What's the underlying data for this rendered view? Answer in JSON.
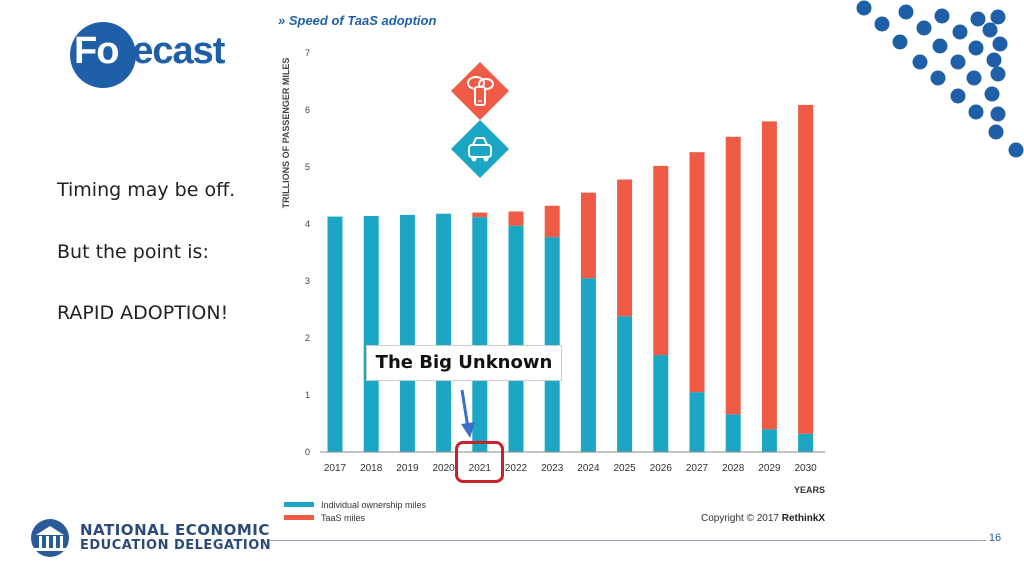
{
  "logo": {
    "part1": "Fo",
    "part2": "recast"
  },
  "side_text": {
    "line1": "Timing may be off.",
    "line2": "But the point is:",
    "line3": "RAPID ADOPTION!"
  },
  "annotation": {
    "label": "The Big Unknown",
    "highlight_year": "2021"
  },
  "organization": {
    "line1": "NATIONAL ECONOMIC",
    "line2": "EDUCATION DELEGATION"
  },
  "page_number": "16",
  "copyright": {
    "text": "Copyright © 2017",
    "brand": "RethinkX"
  },
  "colors": {
    "individual": "#1ba6c4",
    "taas": "#ef5b44",
    "brand_blue": "#1f5fa8",
    "highlight": "#c0252a",
    "dots": "#1f5fa8"
  },
  "chart_data": {
    "type": "bar",
    "stacked": true,
    "title": "» Speed of TaaS adoption",
    "xlabel": "YEARS",
    "ylabel": "TRILLIONS OF PASSENGER MILES",
    "ylim": [
      0,
      7
    ],
    "yticks": [
      0,
      1,
      2,
      3,
      4,
      5,
      6,
      7
    ],
    "grid": false,
    "legend_position": "bottom-left",
    "categories": [
      "2017",
      "2018",
      "2019",
      "2020",
      "2021",
      "2022",
      "2023",
      "2024",
      "2025",
      "2026",
      "2027",
      "2028",
      "2029",
      "2030"
    ],
    "series": [
      {
        "name": "Individual ownership miles",
        "color": "#1ba6c4",
        "values": [
          4.13,
          4.14,
          4.16,
          4.18,
          4.12,
          3.97,
          3.77,
          3.05,
          2.38,
          1.7,
          1.05,
          0.66,
          0.4,
          0.32
        ]
      },
      {
        "name": "TaaS miles",
        "color": "#ef5b44",
        "values": [
          0.0,
          0.0,
          0.0,
          0.0,
          0.08,
          0.25,
          0.55,
          1.5,
          2.4,
          3.32,
          4.21,
          4.87,
          5.4,
          5.77
        ]
      }
    ],
    "icons": [
      "cloud-phone-icon",
      "taas-vehicle-icon"
    ]
  }
}
